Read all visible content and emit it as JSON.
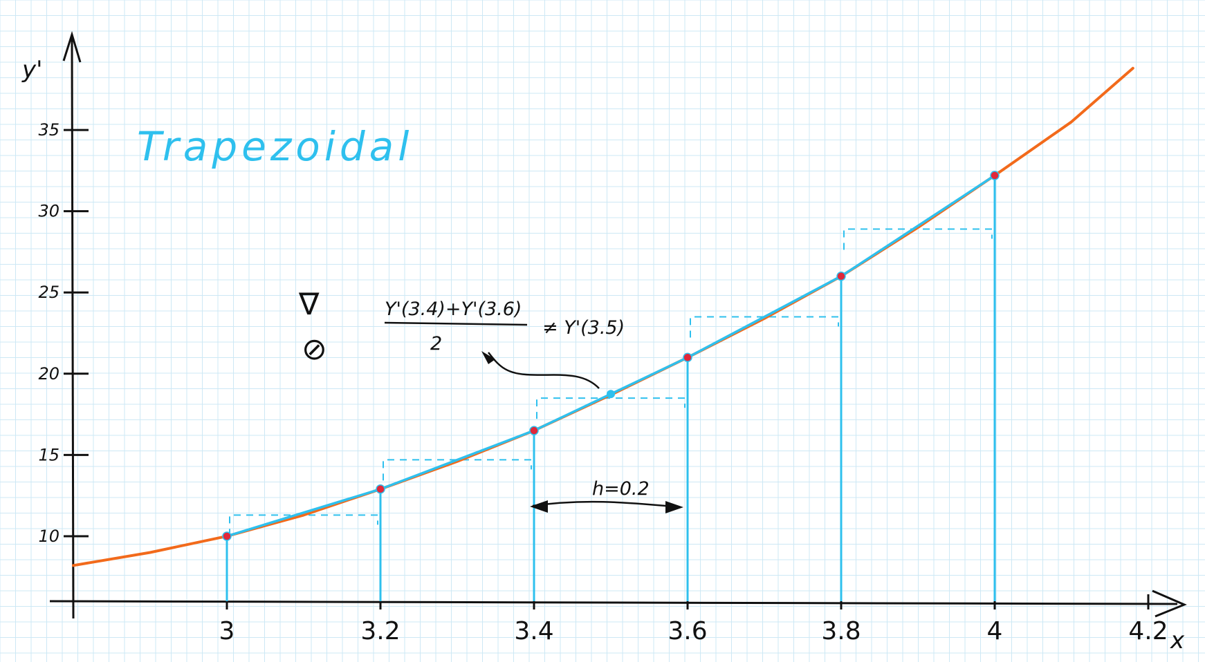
{
  "chart_data": {
    "type": "line",
    "title": "Trapezoidal",
    "xlabel": "x",
    "ylabel": "y'",
    "x_ticks": [
      "3",
      "3.2",
      "3.4",
      "3.6",
      "3.8",
      "4",
      "4.2"
    ],
    "y_ticks": [
      "10",
      "15",
      "20",
      "25",
      "30",
      "35"
    ],
    "xlim": [
      2.8,
      4.2
    ],
    "ylim": [
      6,
      41
    ],
    "grid": true,
    "series": [
      {
        "role": "function curve",
        "color": "#f26a1b",
        "x": [
          2.8,
          2.9,
          3.0,
          3.1,
          3.2,
          3.3,
          3.4,
          3.5,
          3.6,
          3.7,
          3.8,
          3.9,
          4.0,
          4.1,
          4.18
        ],
        "values": [
          8.2,
          9.0,
          10.0,
          11.3,
          12.9,
          14.6,
          16.5,
          18.7,
          21.0,
          23.4,
          26.0,
          29.0,
          32.2,
          35.5,
          38.8
        ]
      },
      {
        "role": "piecewise-linear approximation",
        "color": "#2ec0ee",
        "x": [
          3.0,
          3.2,
          3.4,
          3.6,
          3.8,
          4.0
        ],
        "values": [
          10.0,
          12.9,
          16.5,
          21.0,
          26.0,
          32.2
        ]
      }
    ],
    "sample_points": {
      "color": "#e0283a",
      "x": [
        3.0,
        3.2,
        3.4,
        3.6,
        3.8,
        4.0
      ]
    },
    "midpoint": {
      "x": 3.5,
      "color": "#2ec0ee"
    },
    "trapezoid_tops": [
      {
        "x0": 3.0,
        "x1": 3.2,
        "y": 11.3
      },
      {
        "x0": 3.2,
        "x1": 3.4,
        "y": 14.7
      },
      {
        "x0": 3.4,
        "x1": 3.6,
        "y": 18.5
      },
      {
        "x0": 3.6,
        "x1": 3.8,
        "y": 23.5
      },
      {
        "x0": 3.8,
        "x1": 4.0,
        "y": 28.9
      }
    ],
    "annotations": {
      "step": "h=0.2",
      "fraction_numerator": "Y'(3.4)+Y'(3.6)",
      "fraction_denominator": "2",
      "inequality_rhs": "≠ Y'(3.5)",
      "symbol_triangle": "∇",
      "symbol_circle": "⊘"
    }
  },
  "colors": {
    "grid": "#cde8f5",
    "axis": "#111111",
    "curve": "#f26a1b",
    "approx": "#2ec0ee",
    "points": "#e0283a",
    "title": "#2ec0ee"
  }
}
